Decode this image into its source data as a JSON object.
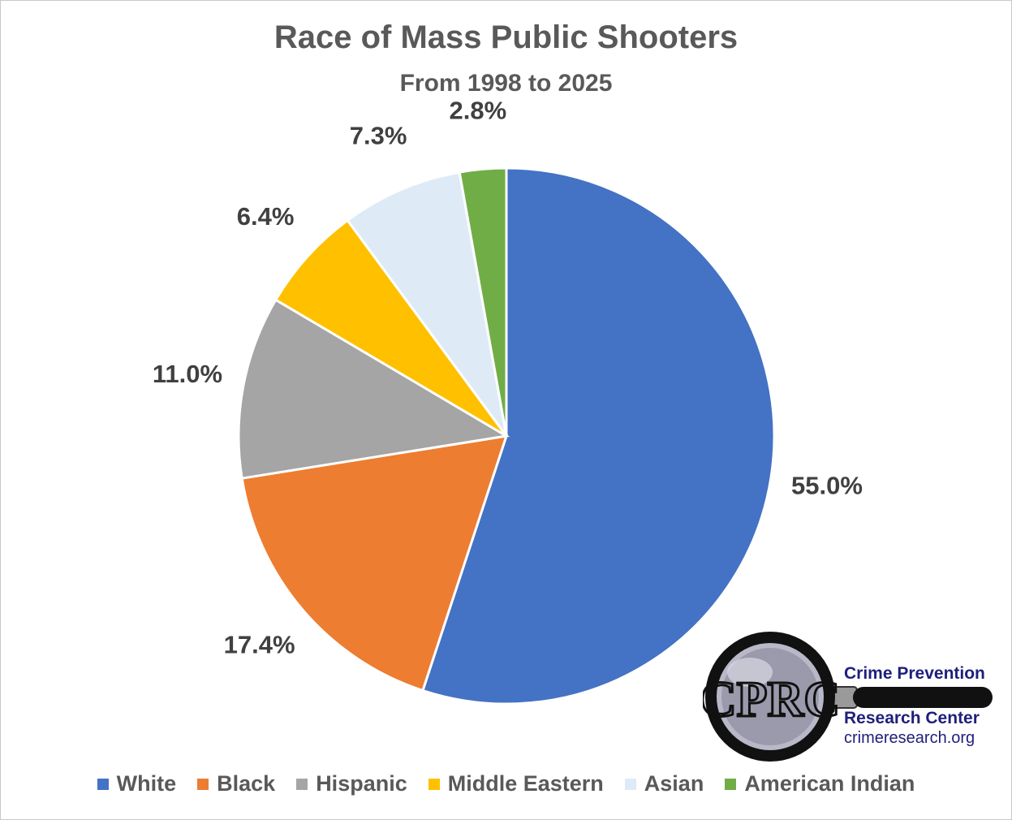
{
  "chart_data": {
    "type": "pie",
    "title": "Race of Mass Public Shooters",
    "subtitle": "From 1998 to 2025",
    "categories": [
      "White",
      "Black",
      "Hispanic",
      "Middle Eastern",
      "Asian",
      "American Indian"
    ],
    "values": [
      55.0,
      17.4,
      11.0,
      6.4,
      7.3,
      2.8
    ],
    "labels": [
      "55.0%",
      "17.4%",
      "11.0%",
      "6.4%",
      "7.3%",
      "2.8%"
    ],
    "colors": [
      "#4472C4",
      "#ED7D31",
      "#A5A5A5",
      "#FFC000",
      "#DEEBF7",
      "#70AD47"
    ],
    "legend_position": "bottom",
    "start_angle_deg": 0,
    "direction": "clockwise"
  },
  "logo": {
    "monogram": "CPRC",
    "name_line1": "Crime Prevention",
    "name_line2": "Research Center",
    "url": "crimeresearch.org",
    "icon": "magnifying-glass-icon"
  }
}
